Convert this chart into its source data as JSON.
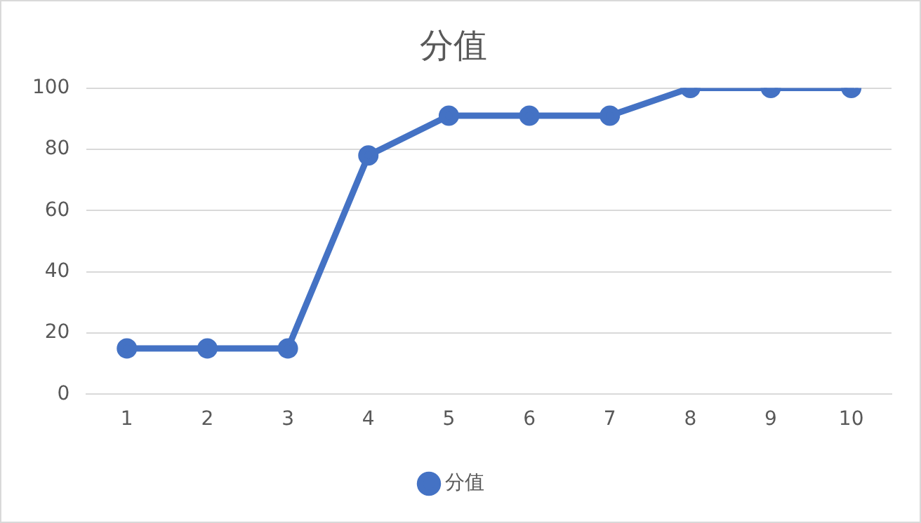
{
  "chart_data": {
    "type": "line",
    "title": "分值",
    "categories": [
      "1",
      "2",
      "3",
      "4",
      "5",
      "6",
      "7",
      "8",
      "9",
      "10"
    ],
    "series": [
      {
        "name": "分值",
        "color": "#4472c4",
        "values": [
          15,
          15,
          15,
          78,
          91,
          91,
          91,
          100,
          100,
          100
        ]
      }
    ],
    "ylim": [
      0,
      100
    ],
    "yticks": [
      0,
      20,
      40,
      60,
      80,
      100
    ],
    "grid": "y",
    "legend": "bottom",
    "marker": "circle",
    "line_style": "solid"
  }
}
